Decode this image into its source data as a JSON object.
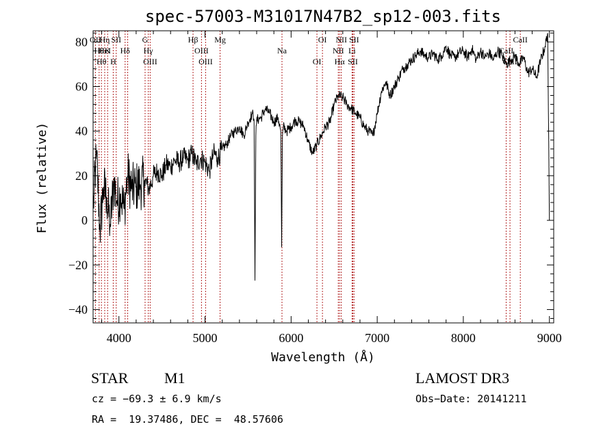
{
  "chart_data": {
    "type": "line",
    "title": "spec-57003-M31017N47B2_sp12-003.fits",
    "xlabel": "Wavelength (Å)",
    "ylabel": "Flux (relative)",
    "xlim": [
      3700,
      9050
    ],
    "ylim": [
      -46,
      85
    ],
    "x_ticks": [
      4000,
      5000,
      6000,
      7000,
      8000,
      9000
    ],
    "y_ticks": [
      -40,
      -20,
      0,
      20,
      40,
      60,
      80
    ],
    "grid": false,
    "colors": {
      "spectrum": "#000000",
      "lines": "#b22222"
    },
    "series": [
      {
        "name": "spectrum",
        "x": [
          3700,
          3740,
          3780,
          3820,
          3860,
          3900,
          3940,
          3980,
          4020,
          4060,
          4100,
          4150,
          4200,
          4250,
          4300,
          4350,
          4400,
          4450,
          4500,
          4550,
          4600,
          4650,
          4700,
          4750,
          4800,
          4850,
          4900,
          4950,
          5000,
          5050,
          5100,
          5150,
          5200,
          5250,
          5300,
          5350,
          5400,
          5450,
          5500,
          5550,
          5570,
          5580,
          5590,
          5600,
          5650,
          5700,
          5750,
          5800,
          5850,
          5880,
          5890,
          5900,
          5910,
          5950,
          6000,
          6050,
          6100,
          6150,
          6200,
          6250,
          6300,
          6350,
          6400,
          6450,
          6500,
          6550,
          6600,
          6650,
          6700,
          6750,
          6800,
          6850,
          6900,
          6950,
          7000,
          7050,
          7100,
          7150,
          7200,
          7250,
          7300,
          7350,
          7400,
          7450,
          7500,
          7550,
          7600,
          7650,
          7700,
          7750,
          7800,
          7850,
          7900,
          7950,
          8000,
          8050,
          8100,
          8150,
          8200,
          8250,
          8300,
          8350,
          8400,
          8450,
          8500,
          8550,
          8600,
          8650,
          8700,
          8750,
          8800,
          8850,
          8900,
          8950,
          8980,
          9000
        ],
        "y": [
          5,
          30,
          -5,
          15,
          10,
          -3,
          18,
          8,
          12,
          5,
          20,
          14,
          15,
          16,
          18,
          14,
          20,
          22,
          20,
          25,
          24,
          27,
          26,
          28,
          27,
          30,
          25,
          28,
          26,
          22,
          30,
          28,
          32,
          34,
          38,
          40,
          42,
          38,
          44,
          48,
          45,
          -27,
          38,
          45,
          46,
          50,
          48,
          44,
          46,
          40,
          -12,
          38,
          42,
          40,
          42,
          45,
          44,
          42,
          35,
          30,
          34,
          38,
          42,
          44,
          52,
          56,
          55,
          52,
          50,
          48,
          46,
          42,
          40,
          38,
          48,
          58,
          62,
          56,
          60,
          64,
          68,
          70,
          72,
          74,
          76,
          74,
          73,
          75,
          72,
          74,
          78,
          74,
          73,
          75,
          76,
          73,
          77,
          72,
          76,
          73,
          75,
          72,
          76,
          74,
          70,
          72,
          74,
          70,
          73,
          66,
          68,
          64,
          72,
          78,
          84,
          0
        ]
      }
    ],
    "spectral_lines": [
      {
        "wave": 3727,
        "labels": [
          "OII"
        ]
      },
      {
        "wave": 3770,
        "labels": [
          "Hθ"
        ]
      },
      {
        "wave": 3797,
        "labels": [
          "Hθ"
        ]
      },
      {
        "wave": 3835,
        "labels": [
          "Hη",
          "HeI"
        ]
      },
      {
        "wave": 3869,
        "labels": [
          "K"
        ]
      },
      {
        "wave": 3934,
        "labels": [
          "H"
        ]
      },
      {
        "wave": 3969,
        "labels": [
          "SII"
        ]
      },
      {
        "wave": 4072,
        "labels": [
          "Hδ"
        ]
      },
      {
        "wave": 4102,
        "labels": []
      },
      {
        "wave": 4304,
        "labels": [
          "G"
        ]
      },
      {
        "wave": 4341,
        "labels": [
          "Hγ"
        ]
      },
      {
        "wave": 4363,
        "labels": [
          "OIII"
        ]
      },
      {
        "wave": 4861,
        "labels": [
          "Hβ"
        ]
      },
      {
        "wave": 4959,
        "labels": [
          "OIII"
        ]
      },
      {
        "wave": 5007,
        "labels": [
          "OIII"
        ]
      },
      {
        "wave": 5175,
        "labels": [
          "Mg"
        ]
      },
      {
        "wave": 5894,
        "labels": [
          "Na"
        ]
      },
      {
        "wave": 6300,
        "labels": [
          "OI"
        ]
      },
      {
        "wave": 6364,
        "labels": [
          "OI"
        ]
      },
      {
        "wave": 6548,
        "labels": [
          "NII"
        ]
      },
      {
        "wave": 6563,
        "labels": [
          "Hα"
        ]
      },
      {
        "wave": 6583,
        "labels": [
          "NII"
        ]
      },
      {
        "wave": 6708,
        "labels": [
          "Li"
        ]
      },
      {
        "wave": 6717,
        "labels": [
          "SII"
        ]
      },
      {
        "wave": 6731,
        "labels": [
          "SII"
        ]
      },
      {
        "wave": 8498,
        "labels": [
          "CaII"
        ]
      },
      {
        "wave": 8542,
        "labels": [
          "CaII"
        ]
      },
      {
        "wave": 8662,
        "labels": [
          "CaII"
        ]
      }
    ]
  },
  "info": {
    "object_class": "STAR",
    "subclass": "M1",
    "survey": "LAMOST DR3",
    "cz": "cz = −69.3 ± 6.9 km/s",
    "obs_date": "Obs−Date: 20141211",
    "radec": "RA =  19.37486, DEC =  48.57606"
  }
}
